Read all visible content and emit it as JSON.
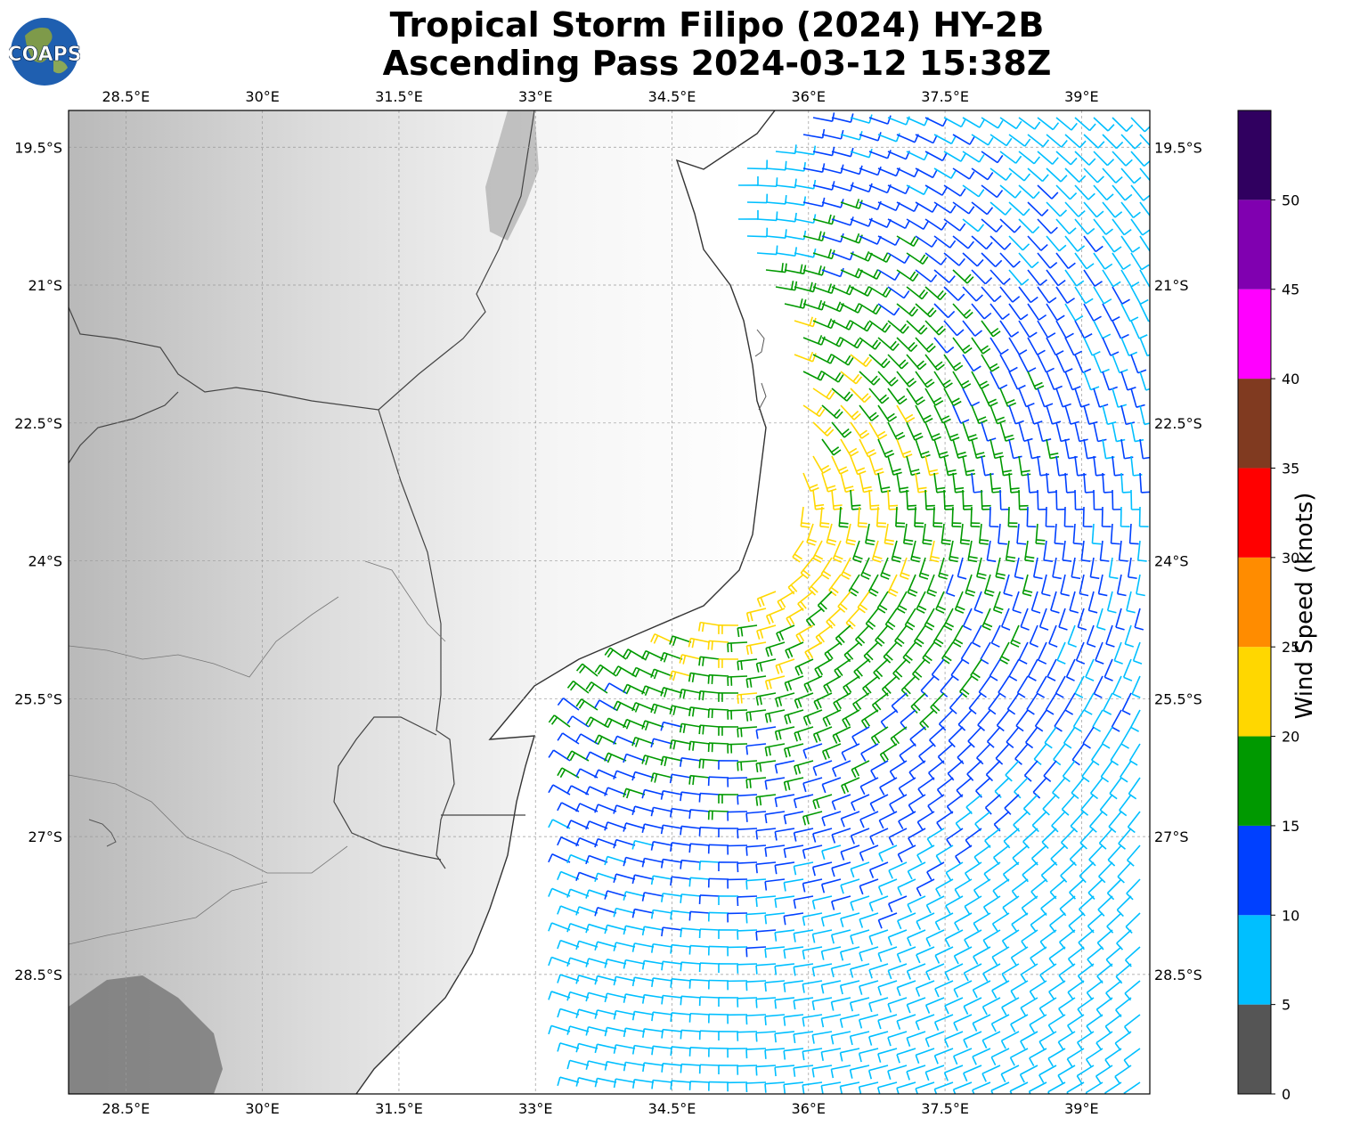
{
  "title": {
    "line1": "Tropical Storm Filipo (2024) HY-2B",
    "line2": "Ascending Pass 2024-03-12 15:38Z"
  },
  "logo": {
    "text": "COAPS",
    "icon": "globe-logo-icon"
  },
  "map": {
    "lon_ticks": [
      "28.5°E",
      "30°E",
      "31.5°E",
      "33°E",
      "34.5°E",
      "36°E",
      "37.5°E",
      "39°E"
    ],
    "lat_ticks": [
      "19.5°S",
      "21°S",
      "22.5°S",
      "24°S",
      "25.5°S",
      "27°S",
      "28.5°S"
    ],
    "lon_values": [
      28.5,
      30,
      31.5,
      33,
      34.5,
      36,
      37.5,
      39
    ],
    "lat_values": [
      -19.5,
      -21,
      -22.5,
      -24,
      -25.5,
      -27,
      -28.5
    ],
    "lon_range": [
      27.87,
      39.75
    ],
    "lat_range": [
      -29.8,
      -19.1
    ],
    "grid": true,
    "basemap": "grayscale topography"
  },
  "colorbar": {
    "label": "Wind Speed (knots)",
    "ticks": [
      "0",
      "5",
      "10",
      "15",
      "20",
      "25",
      "30",
      "35",
      "40",
      "45",
      "50"
    ],
    "bins": [
      {
        "range": [
          0,
          5
        ],
        "color": "#555555"
      },
      {
        "range": [
          5,
          10
        ],
        "color": "#00bfff"
      },
      {
        "range": [
          10,
          15
        ],
        "color": "#0040ff"
      },
      {
        "range": [
          15,
          20
        ],
        "color": "#009900"
      },
      {
        "range": [
          20,
          25
        ],
        "color": "#ffd700"
      },
      {
        "range": [
          25,
          30
        ],
        "color": "#ff8c00"
      },
      {
        "range": [
          30,
          35
        ],
        "color": "#ff0000"
      },
      {
        "range": [
          35,
          40
        ],
        "color": "#803a20"
      },
      {
        "range": [
          40,
          45
        ],
        "color": "#ff00ff"
      },
      {
        "range": [
          45,
          50
        ],
        "color": "#8000b0"
      },
      {
        "range": [
          50,
          55
        ],
        "color": "#300060"
      }
    ]
  }
}
